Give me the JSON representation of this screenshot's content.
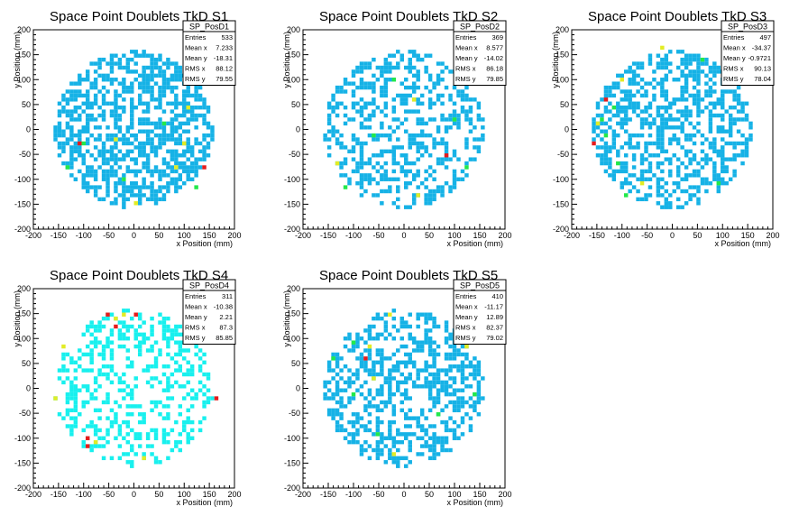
{
  "chart_data": [
    {
      "type": "heatmap",
      "title": "Space Point Doublets TkD S1",
      "xlabel": "x Position (mm)",
      "ylabel": "y Position (mm)",
      "xlim": [
        -200,
        200
      ],
      "ylim": [
        -200,
        200
      ],
      "ticks": [
        "-200",
        "-150",
        "-100",
        "-50",
        "0",
        "50",
        "100",
        "150",
        "200"
      ],
      "stats": {
        "name": "SP_PosD1",
        "rows": [
          [
            "Entries",
            "533"
          ],
          [
            "Mean x",
            "7.233"
          ],
          [
            "Mean y",
            "-18.31"
          ],
          [
            "RMS x",
            "88.12"
          ],
          [
            "RMS y",
            "79.55"
          ]
        ]
      },
      "palette": "blue",
      "seed": 11,
      "density": 0.55,
      "hot_cells": [
        [
          -110,
          -30,
          "red"
        ],
        [
          140,
          -75,
          "red"
        ],
        [
          -100,
          -30,
          "green"
        ],
        [
          -40,
          -20,
          "yellow"
        ],
        [
          -130,
          -80,
          "green"
        ],
        [
          80,
          -80,
          "yellow"
        ],
        [
          100,
          -30,
          "yellow"
        ],
        [
          110,
          40,
          "yellow"
        ],
        [
          -20,
          -100,
          "green"
        ],
        [
          0,
          -150,
          "yellow"
        ],
        [
          60,
          10,
          "green"
        ],
        [
          120,
          -120,
          "green"
        ]
      ]
    },
    {
      "type": "heatmap",
      "title": "Space Point Doublets TkD S2",
      "xlabel": "x Position (mm)",
      "ylabel": "y Position (mm)",
      "xlim": [
        -200,
        200
      ],
      "ylim": [
        -200,
        200
      ],
      "ticks": [
        "-200",
        "-150",
        "-100",
        "-50",
        "0",
        "50",
        "100",
        "150",
        "200"
      ],
      "stats": {
        "name": "SP_PosD2",
        "rows": [
          [
            "Entries",
            "369"
          ],
          [
            "Mean x",
            "8.577"
          ],
          [
            "Mean y",
            "-14.02"
          ],
          [
            "RMS x",
            "86.18"
          ],
          [
            "RMS y",
            "79.85"
          ]
        ]
      },
      "palette": "blue",
      "seed": 23,
      "density": 0.4,
      "hot_cells": [
        [
          85,
          -50,
          "red"
        ],
        [
          -120,
          -115,
          "green"
        ],
        [
          -130,
          -70,
          "yellow"
        ],
        [
          20,
          60,
          "yellow"
        ],
        [
          100,
          20,
          "green"
        ],
        [
          -60,
          -10,
          "green"
        ],
        [
          30,
          -130,
          "yellow"
        ],
        [
          125,
          -75,
          "green"
        ],
        [
          -20,
          100,
          "green"
        ]
      ]
    },
    {
      "type": "heatmap",
      "title": "Space Point Doublets TkD S3",
      "xlabel": "x Position (mm)",
      "ylabel": "y Position (mm)",
      "xlim": [
        -200,
        200
      ],
      "ylim": [
        -200,
        200
      ],
      "ticks": [
        "-200",
        "-150",
        "-100",
        "-50",
        "0",
        "50",
        "100",
        "150",
        "200"
      ],
      "stats": {
        "name": "SP_PosD3",
        "rows": [
          [
            "Entries",
            "497"
          ],
          [
            "Mean x",
            "-34.37"
          ],
          [
            "Mean y",
            "-0.9721"
          ],
          [
            "RMS x",
            "90.13"
          ],
          [
            "RMS y",
            "78.04"
          ]
        ]
      },
      "palette": "blue",
      "seed": 37,
      "density": 0.48,
      "hot_cells": [
        [
          -130,
          60,
          "red"
        ],
        [
          -160,
          -25,
          "red"
        ],
        [
          -120,
          40,
          "green"
        ],
        [
          -140,
          20,
          "green"
        ],
        [
          -130,
          -10,
          "green"
        ],
        [
          -110,
          -70,
          "green"
        ],
        [
          -100,
          100,
          "yellow"
        ],
        [
          -20,
          160,
          "yellow"
        ],
        [
          -90,
          -130,
          "green"
        ],
        [
          -60,
          -110,
          "yellow"
        ],
        [
          60,
          140,
          "green"
        ],
        [
          90,
          -110,
          "green"
        ],
        [
          -150,
          10,
          "yellow"
        ]
      ]
    },
    {
      "type": "heatmap",
      "title": "Space Point Doublets TkD S4",
      "xlabel": "x Position (mm)",
      "ylabel": "y Position (mm)",
      "xlim": [
        -200,
        200
      ],
      "ylim": [
        -200,
        200
      ],
      "ticks": [
        "-200",
        "-150",
        "-100",
        "-50",
        "0",
        "50",
        "100",
        "150",
        "200"
      ],
      "stats": {
        "name": "SP_PosD4",
        "rows": [
          [
            "Entries",
            "311"
          ],
          [
            "Mean x",
            "-10.38"
          ],
          [
            "Mean y",
            "2.21"
          ],
          [
            "RMS x",
            "87.3"
          ],
          [
            "RMS y",
            "85.85"
          ]
        ]
      },
      "palette": "cyan",
      "seed": 51,
      "density": 0.35,
      "hot_cells": [
        [
          -50,
          150,
          "red"
        ],
        [
          -40,
          125,
          "red"
        ],
        [
          0,
          150,
          "red"
        ],
        [
          160,
          -20,
          "red"
        ],
        [
          -90,
          -100,
          "red"
        ],
        [
          -90,
          -120,
          "red"
        ],
        [
          -20,
          150,
          "yellow"
        ],
        [
          -40,
          140,
          "yellow"
        ],
        [
          -160,
          -20,
          "yellow"
        ],
        [
          20,
          -140,
          "yellow"
        ],
        [
          -140,
          80,
          "yellow"
        ],
        [
          -80,
          -110,
          "yellow"
        ]
      ]
    },
    {
      "type": "heatmap",
      "title": "Space Point Doublets TkD S5",
      "xlabel": "x Position (mm)",
      "ylabel": "y Position (mm)",
      "xlim": [
        -200,
        200
      ],
      "ylim": [
        -200,
        200
      ],
      "ticks": [
        "-200",
        "-150",
        "-100",
        "-50",
        "0",
        "50",
        "100",
        "150",
        "200"
      ],
      "stats": {
        "name": "SP_PosD5",
        "rows": [
          [
            "Entries",
            "410"
          ],
          [
            "Mean x",
            "-11.17"
          ],
          [
            "Mean y",
            "12.89"
          ],
          [
            "RMS x",
            "82.37"
          ],
          [
            "RMS y",
            "79.02"
          ]
        ]
      },
      "palette": "blue",
      "seed": 67,
      "density": 0.42,
      "hot_cells": [
        [
          -75,
          60,
          "red"
        ],
        [
          -70,
          80,
          "yellow"
        ],
        [
          -60,
          20,
          "yellow"
        ],
        [
          -100,
          90,
          "green"
        ],
        [
          -30,
          150,
          "yellow"
        ],
        [
          -140,
          60,
          "green"
        ],
        [
          -50,
          -90,
          "green"
        ],
        [
          120,
          80,
          "yellow"
        ],
        [
          70,
          -50,
          "green"
        ],
        [
          -20,
          -130,
          "yellow"
        ],
        [
          -100,
          -10,
          "green"
        ],
        [
          140,
          -10,
          "green"
        ]
      ]
    }
  ],
  "colors": {
    "blue": "#16b2e6",
    "cyan": "#18f0ee",
    "green": "#22e84a",
    "yellow": "#e2ec24",
    "red": "#e51c1c",
    "frame": "#000000",
    "background": "#ffffff"
  }
}
